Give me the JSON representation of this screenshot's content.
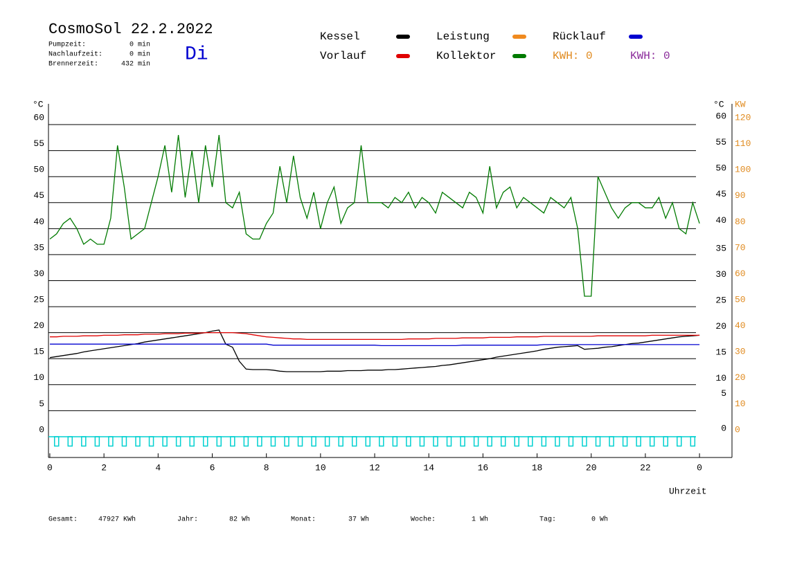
{
  "chart_data": {
    "type": "line",
    "title": "CosmoSol 22.2.2022",
    "weekday": "Di",
    "info": [
      {
        "label": "Pumpzeit:",
        "value": "0 min"
      },
      {
        "label": "Nachlaufzeit:",
        "value": "0 min"
      },
      {
        "label": "Brennerzeit:",
        "value": "432 min"
      }
    ],
    "y_label": "°C",
    "y2_label": "KW",
    "x_label": "Uhrzeit",
    "kwh_labels": [
      {
        "text": "KWH: 0",
        "color": "#e08a1e"
      },
      {
        "text": "KWH: 0",
        "color": "#8a2a9a"
      }
    ],
    "footer": [
      {
        "label": "Gesamt:",
        "value": "47927 KWh"
      },
      {
        "label": "Jahr:",
        "value": "82 Wh"
      },
      {
        "label": "Monat:",
        "value": "37 Wh"
      },
      {
        "label": "Woche:",
        "value": "1 Wh"
      },
      {
        "label": "Tag:",
        "value": "0 Wh"
      }
    ],
    "xlim": [
      -0.05,
      25.2
    ],
    "xticks": [
      0,
      2,
      4,
      6,
      8,
      10,
      12,
      14,
      16,
      18,
      20,
      22,
      {
        "value": 24,
        "label": "0"
      }
    ],
    "ylim": [
      -4,
      64
    ],
    "yticks": [
      0,
      5,
      10,
      15,
      20,
      25,
      30,
      35,
      40,
      45,
      50,
      55,
      60
    ],
    "y2lim": [
      -8,
      128
    ],
    "y2ticks": [
      0,
      10,
      20,
      30,
      40,
      50,
      60,
      70,
      80,
      90,
      100,
      110,
      120
    ],
    "grid": true,
    "x": [
      0,
      0.25,
      0.5,
      0.75,
      1,
      1.25,
      1.5,
      1.75,
      2,
      2.25,
      2.5,
      2.75,
      3,
      3.25,
      3.5,
      3.75,
      4,
      4.25,
      4.5,
      4.75,
      5,
      5.25,
      5.5,
      5.75,
      6,
      6.25,
      6.5,
      6.75,
      7,
      7.25,
      7.5,
      7.75,
      8,
      8.25,
      8.5,
      8.75,
      9,
      9.25,
      9.5,
      9.75,
      10,
      10.25,
      10.5,
      10.75,
      11,
      11.25,
      11.5,
      11.75,
      12,
      12.25,
      12.5,
      12.75,
      13,
      13.25,
      13.5,
      13.75,
      14,
      14.25,
      14.5,
      14.75,
      15,
      15.25,
      15.5,
      15.75,
      16,
      16.25,
      16.5,
      16.75,
      17,
      17.25,
      17.5,
      17.75,
      18,
      18.25,
      18.5,
      18.75,
      19,
      19.25,
      19.5,
      19.75,
      20,
      20.25,
      20.5,
      20.75,
      21,
      21.25,
      21.5,
      21.75,
      22,
      22.25,
      22.5,
      22.75,
      23,
      23.25,
      23.5,
      23.75,
      24
    ],
    "series": [
      {
        "name": "Kessel",
        "color": "#000000",
        "values": [
          15.2,
          15.4,
          15.6,
          15.8,
          16.0,
          16.3,
          16.5,
          16.7,
          16.9,
          17.1,
          17.3,
          17.5,
          17.7,
          17.9,
          18.2,
          18.4,
          18.6,
          18.8,
          19.0,
          19.2,
          19.4,
          19.6,
          19.8,
          20.0,
          20.3,
          20.5,
          17.8,
          17.2,
          14.5,
          13.0,
          12.9,
          12.9,
          12.9,
          12.8,
          12.6,
          12.5,
          12.5,
          12.5,
          12.5,
          12.5,
          12.5,
          12.6,
          12.6,
          12.6,
          12.7,
          12.7,
          12.7,
          12.8,
          12.8,
          12.8,
          12.9,
          12.9,
          13.0,
          13.1,
          13.2,
          13.3,
          13.4,
          13.5,
          13.7,
          13.8,
          14.0,
          14.2,
          14.4,
          14.6,
          14.8,
          15.0,
          15.3,
          15.5,
          15.7,
          15.9,
          16.1,
          16.3,
          16.5,
          16.8,
          17.0,
          17.2,
          17.3,
          17.4,
          17.5,
          16.8,
          16.9,
          17.0,
          17.2,
          17.3,
          17.5,
          17.7,
          17.9,
          18.0,
          18.2,
          18.4,
          18.6,
          18.8,
          19.0,
          19.2,
          19.3,
          19.4,
          19.5
        ]
      },
      {
        "name": "Vorlauf",
        "color": "#e00000",
        "values": [
          19.2,
          19.2,
          19.3,
          19.3,
          19.3,
          19.4,
          19.4,
          19.4,
          19.5,
          19.5,
          19.5,
          19.6,
          19.6,
          19.6,
          19.7,
          19.7,
          19.7,
          19.8,
          19.8,
          19.8,
          19.9,
          19.9,
          19.9,
          20.0,
          20.0,
          20.0,
          20.0,
          20.0,
          19.9,
          19.8,
          19.6,
          19.4,
          19.2,
          19.1,
          19.0,
          18.9,
          18.8,
          18.8,
          18.7,
          18.7,
          18.7,
          18.7,
          18.7,
          18.7,
          18.7,
          18.7,
          18.7,
          18.7,
          18.7,
          18.7,
          18.7,
          18.7,
          18.7,
          18.8,
          18.8,
          18.8,
          18.8,
          18.9,
          18.9,
          18.9,
          18.9,
          19.0,
          19.0,
          19.0,
          19.0,
          19.1,
          19.1,
          19.1,
          19.1,
          19.2,
          19.2,
          19.2,
          19.2,
          19.3,
          19.3,
          19.3,
          19.3,
          19.3,
          19.3,
          19.3,
          19.3,
          19.4,
          19.4,
          19.4,
          19.4,
          19.4,
          19.4,
          19.4,
          19.4,
          19.5,
          19.5,
          19.5,
          19.5,
          19.5,
          19.5,
          19.5,
          19.5
        ]
      },
      {
        "name": "Leistung",
        "color": "#f08a1e",
        "axis": "y2"
      },
      {
        "name": "Kollektor",
        "color": "#007a00",
        "values": [
          38,
          39,
          41,
          42,
          40,
          37,
          38,
          37,
          37,
          42,
          56,
          48,
          38,
          39,
          40,
          45,
          50,
          56,
          47,
          58,
          46,
          55,
          45,
          56,
          48,
          58,
          45,
          44,
          47,
          39,
          38,
          38,
          41,
          43,
          52,
          45,
          54,
          46,
          42,
          47,
          40,
          45,
          48,
          41,
          44,
          45,
          56,
          45,
          45,
          45,
          44,
          46,
          45,
          47,
          44,
          46,
          45,
          43,
          47,
          46,
          45,
          44,
          47,
          46,
          43,
          52,
          44,
          47,
          48,
          44,
          46,
          45,
          44,
          43,
          46,
          45,
          44,
          46,
          40,
          27,
          27,
          50,
          47,
          44,
          42,
          44,
          45,
          45,
          44,
          44,
          46,
          42,
          45,
          40,
          39,
          45,
          41
        ]
      },
      {
        "name": "Rücklauf",
        "color": "#0000d0",
        "values": [
          17.8,
          17.8,
          17.8,
          17.8,
          17.8,
          17.8,
          17.8,
          17.8,
          17.8,
          17.8,
          17.8,
          17.8,
          17.8,
          17.8,
          17.8,
          17.8,
          17.8,
          17.8,
          17.8,
          17.8,
          17.8,
          17.8,
          17.8,
          17.8,
          17.8,
          17.8,
          17.8,
          17.8,
          17.8,
          17.8,
          17.8,
          17.8,
          17.8,
          17.6,
          17.6,
          17.6,
          17.6,
          17.6,
          17.6,
          17.6,
          17.6,
          17.6,
          17.6,
          17.6,
          17.6,
          17.6,
          17.6,
          17.6,
          17.6,
          17.5,
          17.5,
          17.5,
          17.5,
          17.5,
          17.5,
          17.5,
          17.5,
          17.5,
          17.5,
          17.5,
          17.5,
          17.6,
          17.6,
          17.6,
          17.6,
          17.6,
          17.6,
          17.6,
          17.6,
          17.6,
          17.6,
          17.6,
          17.6,
          17.7,
          17.7,
          17.7,
          17.7,
          17.7,
          17.7,
          17.7,
          17.7,
          17.7,
          17.7,
          17.7,
          17.7,
          17.7,
          17.7,
          17.7,
          17.7,
          17.7,
          17.7,
          17.7,
          17.7,
          17.7,
          17.7,
          17.7,
          17.7
        ]
      },
      {
        "color": "#00d0d0",
        "style": "pulse",
        "values": [
          0,
          -1.8,
          0,
          -1.8,
          0,
          -1.8,
          0,
          -1.8,
          0,
          -1.8,
          0,
          -1.8,
          0,
          -1.8,
          0,
          -1.8,
          0,
          -1.8,
          0,
          -1.8,
          0,
          -1.8,
          0,
          -1.8,
          0,
          -1.8,
          0,
          -1.8,
          0,
          -1.8,
          0,
          -1.8,
          0,
          -1.8,
          0,
          -1.8,
          0,
          -1.8,
          0,
          -1.8,
          0,
          -1.8,
          0,
          -1.8,
          0,
          -1.8,
          0,
          -1.8,
          0,
          -1.8,
          0,
          -1.8,
          0,
          -1.8,
          0,
          -1.8,
          0,
          -1.8,
          0,
          -1.8,
          0,
          -1.8,
          0,
          -1.8,
          0,
          -1.8,
          0,
          -1.8,
          0,
          -1.8,
          0,
          -1.8,
          0,
          -1.8,
          0,
          -1.8,
          0,
          -1.8,
          0,
          -1.8,
          0,
          -1.8,
          0,
          -1.8,
          0,
          -1.8,
          0,
          -1.8,
          0,
          -1.8,
          0,
          -1.8,
          0,
          -1.8,
          0,
          -1.8,
          0
        ]
      }
    ]
  }
}
